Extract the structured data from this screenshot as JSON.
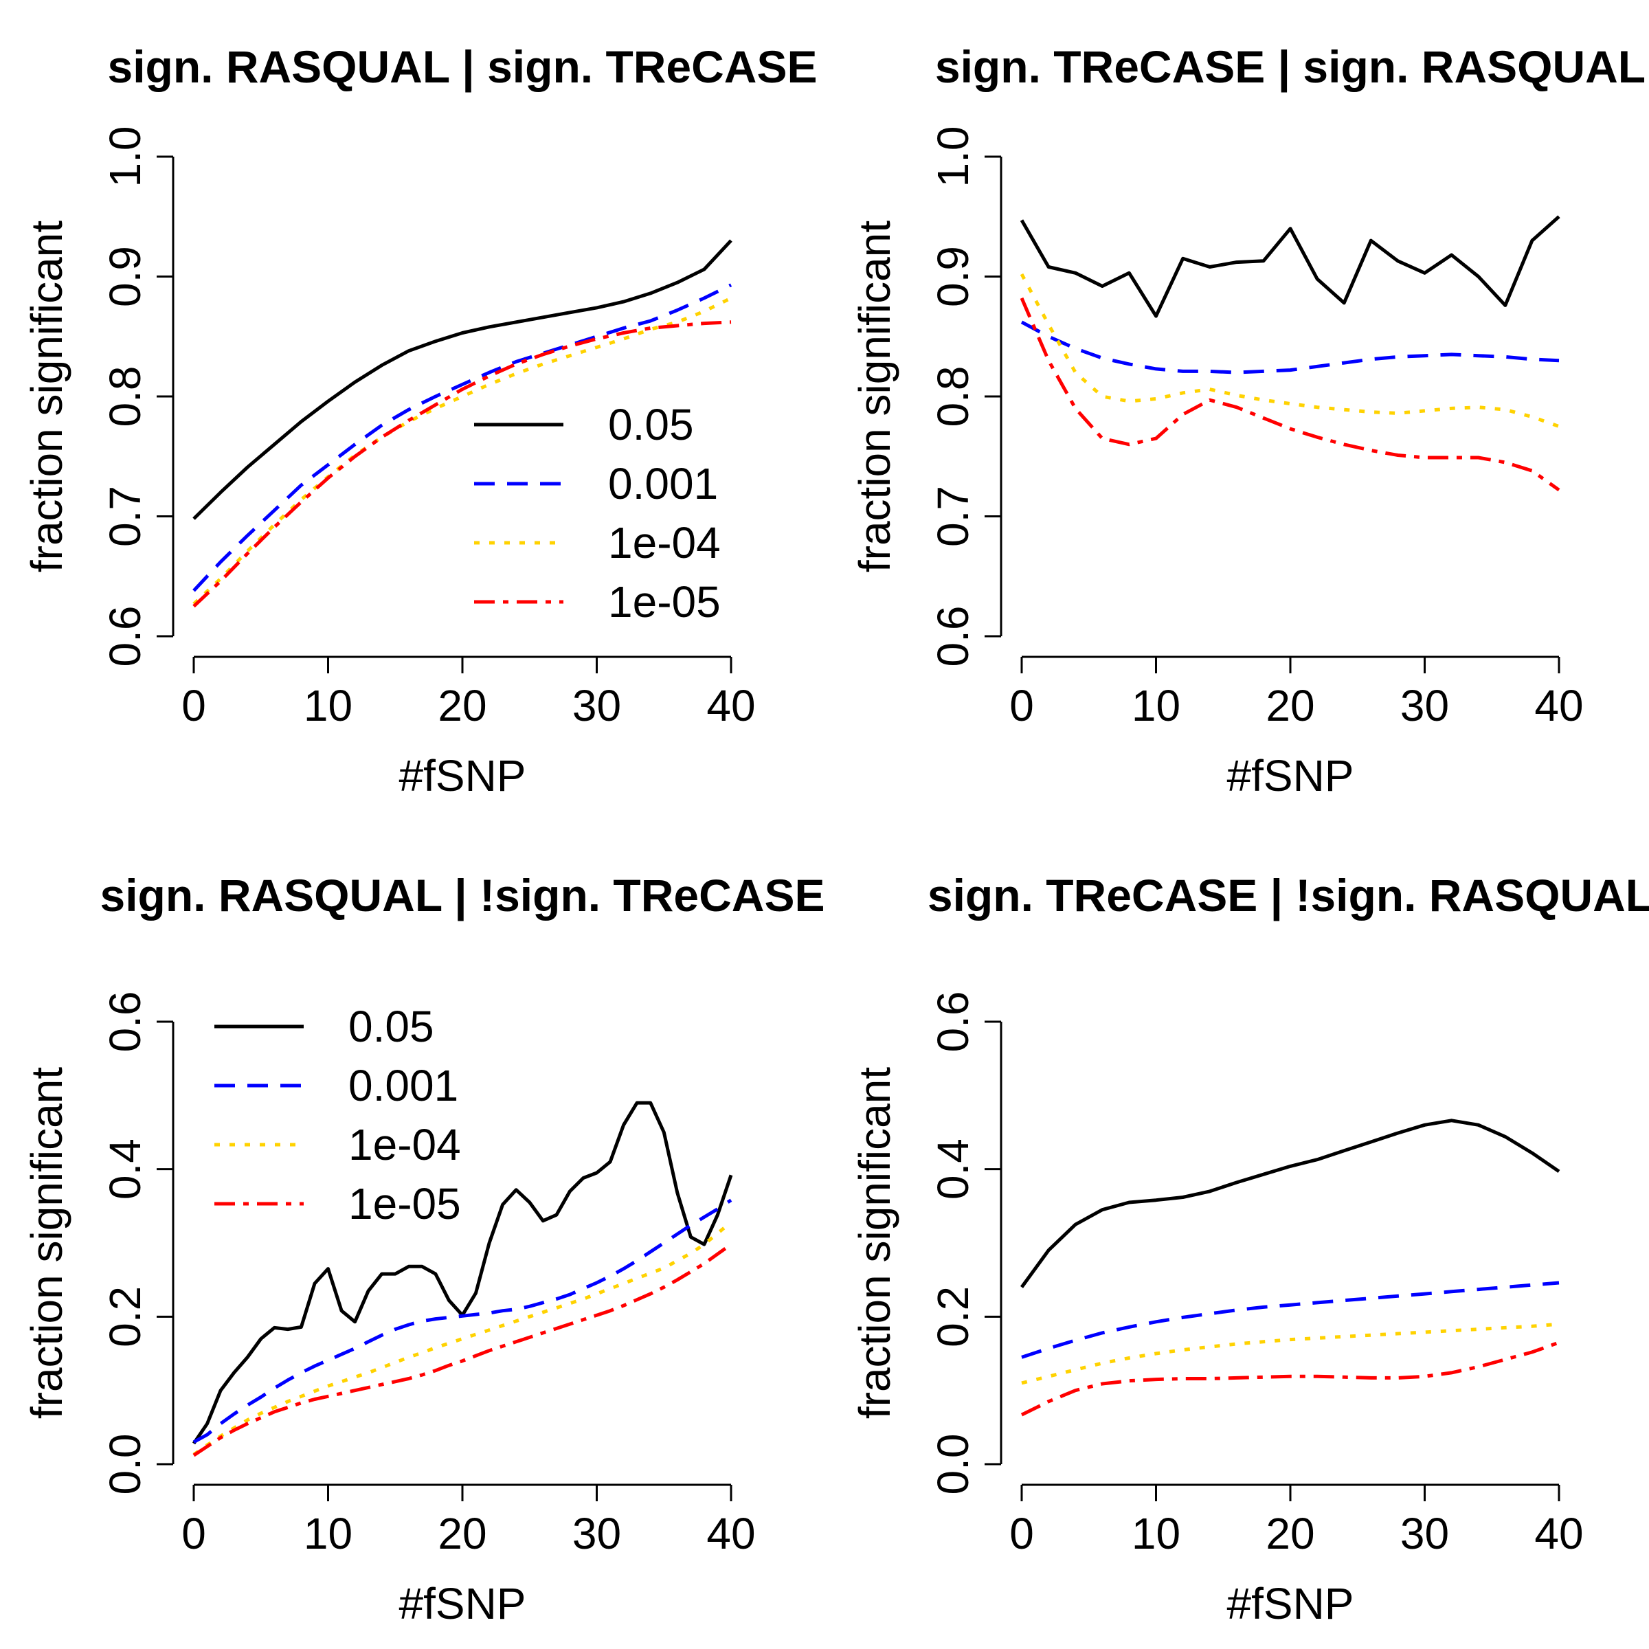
{
  "colors": {
    "0.05": "#000000",
    "0.001": "#0000ff",
    "1e-04": "#ffd200",
    "1e-05": "#ff0000"
  },
  "series_styles": [
    {
      "name": "0.05",
      "color": "#000000",
      "dash": ""
    },
    {
      "name": "0.001",
      "color": "#0000ff",
      "dash": "30 18"
    },
    {
      "name": "1e-04",
      "color": "#ffd200",
      "dash": "8 14"
    },
    {
      "name": "1e-05",
      "color": "#ff0000",
      "dash": "30 12 8 12"
    }
  ],
  "chart_data": [
    {
      "type": "line",
      "title": "sign. RASQUAL | sign. TReCASE",
      "xlabel": "#fSNP",
      "ylabel": "fraction significant",
      "xlim": [
        0,
        40
      ],
      "ylim": [
        0.6,
        1.0
      ],
      "xticks": [
        "0",
        "10",
        "20",
        "30",
        "40"
      ],
      "yticks": [
        "0.6",
        "0.7",
        "0.8",
        "0.9",
        "1.0"
      ],
      "legend": {
        "position": "bottom-right",
        "entries": [
          "0.05",
          "0.001",
          "1e-04",
          "1e-05"
        ]
      },
      "x": [
        0,
        2,
        4,
        6,
        8,
        10,
        12,
        14,
        16,
        18,
        20,
        22,
        24,
        26,
        28,
        30,
        32,
        34,
        36,
        38,
        40
      ],
      "series": [
        {
          "name": "0.05",
          "values": [
            0.698,
            0.72,
            0.741,
            0.76,
            0.779,
            0.796,
            0.812,
            0.826,
            0.838,
            0.846,
            0.853,
            0.858,
            0.862,
            0.866,
            0.87,
            0.874,
            0.879,
            0.886,
            0.895,
            0.906,
            0.93
          ]
        },
        {
          "name": "0.001",
          "values": [
            0.638,
            0.662,
            0.684,
            0.705,
            0.726,
            0.743,
            0.76,
            0.776,
            0.789,
            0.8,
            0.81,
            0.82,
            0.829,
            0.836,
            0.843,
            0.85,
            0.857,
            0.863,
            0.872,
            0.882,
            0.893
          ]
        },
        {
          "name": "1e-04",
          "values": [
            0.627,
            0.648,
            0.671,
            0.693,
            0.714,
            0.733,
            0.751,
            0.766,
            0.779,
            0.79,
            0.8,
            0.81,
            0.819,
            0.827,
            0.834,
            0.841,
            0.848,
            0.856,
            0.862,
            0.871,
            0.882
          ]
        },
        {
          "name": "1e-05",
          "values": [
            0.625,
            0.646,
            0.669,
            0.691,
            0.712,
            0.732,
            0.75,
            0.766,
            0.78,
            0.793,
            0.806,
            0.817,
            0.827,
            0.835,
            0.842,
            0.848,
            0.853,
            0.857,
            0.859,
            0.861,
            0.862
          ]
        }
      ]
    },
    {
      "type": "line",
      "title": "sign. TReCASE | sign. RASQUAL",
      "xlabel": "#fSNP",
      "ylabel": "fraction significant",
      "xlim": [
        0,
        40
      ],
      "ylim": [
        0.6,
        1.0
      ],
      "xticks": [
        "0",
        "10",
        "20",
        "30",
        "40"
      ],
      "yticks": [
        "0.6",
        "0.7",
        "0.8",
        "0.9",
        "1.0"
      ],
      "legend": null,
      "x": [
        0,
        2,
        4,
        6,
        8,
        10,
        12,
        14,
        16,
        18,
        20,
        22,
        24,
        26,
        28,
        30,
        32,
        34,
        36,
        38,
        40
      ],
      "series": [
        {
          "name": "0.05",
          "values": [
            0.947,
            0.908,
            0.903,
            0.892,
            0.903,
            0.867,
            0.915,
            0.908,
            0.912,
            0.913,
            0.94,
            0.898,
            0.878,
            0.93,
            0.913,
            0.903,
            0.918,
            0.9,
            0.876,
            0.93,
            0.95
          ]
        },
        {
          "name": "0.001",
          "values": [
            0.862,
            0.85,
            0.84,
            0.832,
            0.827,
            0.823,
            0.821,
            0.821,
            0.82,
            0.821,
            0.822,
            0.825,
            0.828,
            0.831,
            0.833,
            0.834,
            0.835,
            0.834,
            0.833,
            0.831,
            0.83
          ]
        },
        {
          "name": "1e-04",
          "values": [
            0.902,
            0.86,
            0.82,
            0.8,
            0.796,
            0.798,
            0.803,
            0.806,
            0.801,
            0.797,
            0.794,
            0.791,
            0.789,
            0.787,
            0.786,
            0.788,
            0.79,
            0.791,
            0.789,
            0.783,
            0.775
          ]
        },
        {
          "name": "1e-05",
          "values": [
            0.882,
            0.83,
            0.79,
            0.765,
            0.76,
            0.765,
            0.785,
            0.797,
            0.791,
            0.782,
            0.773,
            0.766,
            0.76,
            0.755,
            0.751,
            0.749,
            0.749,
            0.749,
            0.745,
            0.738,
            0.722
          ]
        }
      ]
    },
    {
      "type": "line",
      "title": "sign. RASQUAL | !sign. TReCASE",
      "xlabel": "#fSNP",
      "ylabel": "fraction significant",
      "xlim": [
        0,
        40
      ],
      "ylim": [
        0.0,
        0.6
      ],
      "xticks": [
        "0",
        "10",
        "20",
        "30",
        "40"
      ],
      "yticks": [
        "0.0",
        "0.2",
        "0.4",
        "0.6"
      ],
      "legend": {
        "position": "top-left",
        "entries": [
          "0.05",
          "0.001",
          "1e-04",
          "1e-05"
        ]
      },
      "x": [
        0,
        1,
        2,
        3,
        4,
        5,
        6,
        7,
        8,
        9,
        10,
        11,
        12,
        13,
        14,
        15,
        16,
        17,
        18,
        19,
        20,
        21,
        22,
        23,
        24,
        25,
        26,
        27,
        28,
        29,
        30,
        31,
        32,
        33,
        34,
        35,
        36,
        37,
        38,
        39,
        40
      ],
      "series": [
        {
          "name": "0.05",
          "values": [
            0.028,
            0.055,
            0.1,
            0.124,
            0.145,
            0.17,
            0.185,
            0.183,
            0.186,
            0.245,
            0.265,
            0.208,
            0.193,
            0.235,
            0.258,
            0.258,
            0.268,
            0.268,
            0.258,
            0.222,
            0.202,
            0.232,
            0.3,
            0.352,
            0.372,
            0.355,
            0.33,
            0.338,
            0.37,
            0.388,
            0.395,
            0.41,
            0.46,
            0.49,
            0.49,
            0.45,
            0.368,
            0.308,
            0.298,
            0.338,
            0.392
          ]
        },
        {
          "name": "0.001",
          "values": [
            0.03,
            0.04,
            0.055,
            0.068,
            0.08,
            0.091,
            0.103,
            0.114,
            0.124,
            0.133,
            0.141,
            0.149,
            0.157,
            0.166,
            0.175,
            0.183,
            0.189,
            0.194,
            0.197,
            0.199,
            0.201,
            0.203,
            0.205,
            0.208,
            0.21,
            0.214,
            0.219,
            0.224,
            0.23,
            0.238,
            0.246,
            0.255,
            0.265,
            0.276,
            0.288,
            0.3,
            0.312,
            0.324,
            0.335,
            0.346,
            0.358
          ]
        },
        {
          "name": "1e-04",
          "values": [
            0.013,
            0.026,
            0.038,
            0.049,
            0.06,
            0.069,
            0.077,
            0.085,
            0.092,
            0.099,
            0.106,
            0.112,
            0.118,
            0.124,
            0.131,
            0.138,
            0.145,
            0.151,
            0.158,
            0.164,
            0.17,
            0.176,
            0.182,
            0.188,
            0.194,
            0.2,
            0.206,
            0.212,
            0.218,
            0.224,
            0.231,
            0.238,
            0.245,
            0.252,
            0.259,
            0.266,
            0.276,
            0.286,
            0.298,
            0.313,
            0.328
          ]
        },
        {
          "name": "1e-05",
          "values": [
            0.012,
            0.024,
            0.036,
            0.046,
            0.055,
            0.063,
            0.071,
            0.077,
            0.083,
            0.088,
            0.092,
            0.096,
            0.1,
            0.104,
            0.108,
            0.112,
            0.116,
            0.121,
            0.127,
            0.134,
            0.14,
            0.147,
            0.154,
            0.16,
            0.166,
            0.172,
            0.178,
            0.184,
            0.19,
            0.196,
            0.202,
            0.208,
            0.215,
            0.223,
            0.231,
            0.24,
            0.25,
            0.261,
            0.272,
            0.285,
            0.298
          ]
        }
      ]
    },
    {
      "type": "line",
      "title": "sign. TReCASE | !sign. RASQUAL",
      "xlabel": "#fSNP",
      "ylabel": "fraction significant",
      "xlim": [
        0,
        40
      ],
      "ylim": [
        0.0,
        0.6
      ],
      "xticks": [
        "0",
        "10",
        "20",
        "30",
        "40"
      ],
      "yticks": [
        "0.0",
        "0.2",
        "0.4",
        "0.6"
      ],
      "legend": null,
      "x": [
        0,
        2,
        4,
        6,
        8,
        10,
        12,
        14,
        16,
        18,
        20,
        22,
        24,
        26,
        28,
        30,
        32,
        34,
        36,
        38,
        40
      ],
      "series": [
        {
          "name": "0.05",
          "values": [
            0.24,
            0.29,
            0.325,
            0.345,
            0.355,
            0.358,
            0.362,
            0.37,
            0.382,
            0.393,
            0.404,
            0.413,
            0.425,
            0.437,
            0.449,
            0.46,
            0.466,
            0.46,
            0.444,
            0.422,
            0.397
          ]
        },
        {
          "name": "0.001",
          "values": [
            0.145,
            0.157,
            0.168,
            0.178,
            0.186,
            0.193,
            0.199,
            0.204,
            0.209,
            0.213,
            0.216,
            0.219,
            0.222,
            0.225,
            0.228,
            0.231,
            0.234,
            0.237,
            0.24,
            0.243,
            0.246
          ]
        },
        {
          "name": "1e-04",
          "values": [
            0.11,
            0.119,
            0.128,
            0.137,
            0.144,
            0.15,
            0.155,
            0.159,
            0.163,
            0.166,
            0.169,
            0.171,
            0.173,
            0.175,
            0.177,
            0.179,
            0.181,
            0.183,
            0.185,
            0.187,
            0.19
          ]
        },
        {
          "name": "1e-05",
          "values": [
            0.067,
            0.085,
            0.1,
            0.109,
            0.113,
            0.115,
            0.116,
            0.116,
            0.117,
            0.118,
            0.119,
            0.119,
            0.118,
            0.117,
            0.117,
            0.119,
            0.124,
            0.132,
            0.142,
            0.152,
            0.165
          ]
        }
      ]
    }
  ]
}
